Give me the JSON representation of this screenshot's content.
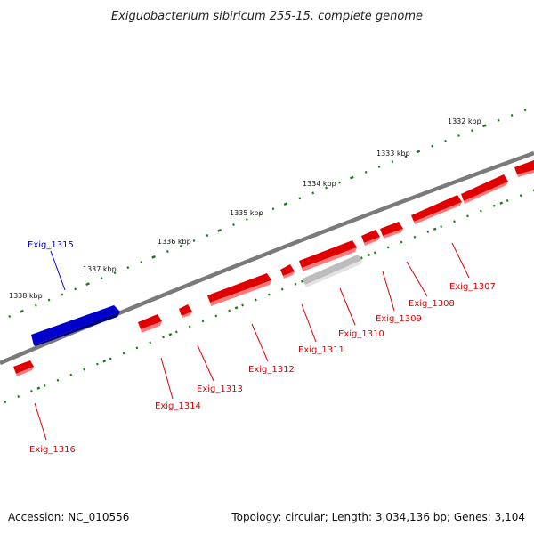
{
  "title": "Exiguobacterium sibiricum 255-15, complete genome",
  "accession": "Accession: NC_010556",
  "summary": "Topology: circular; Length: 3,034,136 bp; Genes: 3,104",
  "colors": {
    "forward_gene": "#ff0000",
    "reverse_gene": "#0000ff",
    "other_feature": "#bdbdbd",
    "backbone": "#808080",
    "ticks": "#1a7a1a"
  },
  "ruler_labels": [
    "1332 kbp",
    "1333 kbp",
    "1334 kbp",
    "1335 kbp",
    "1336 kbp",
    "1337 kbp",
    "1338 kbp"
  ],
  "genes": [
    {
      "name": "Exig_1307",
      "strand": "forward"
    },
    {
      "name": "Exig_1308",
      "strand": "forward"
    },
    {
      "name": "Exig_1309",
      "strand": "forward"
    },
    {
      "name": "Exig_1310",
      "strand": "other"
    },
    {
      "name": "Exig_1311",
      "strand": "forward"
    },
    {
      "name": "Exig_1312",
      "strand": "forward"
    },
    {
      "name": "Exig_1313",
      "strand": "forward"
    },
    {
      "name": "Exig_1314",
      "strand": "forward"
    },
    {
      "name": "Exig_1315",
      "strand": "reverse"
    },
    {
      "name": "Exig_1316",
      "strand": "forward"
    }
  ]
}
